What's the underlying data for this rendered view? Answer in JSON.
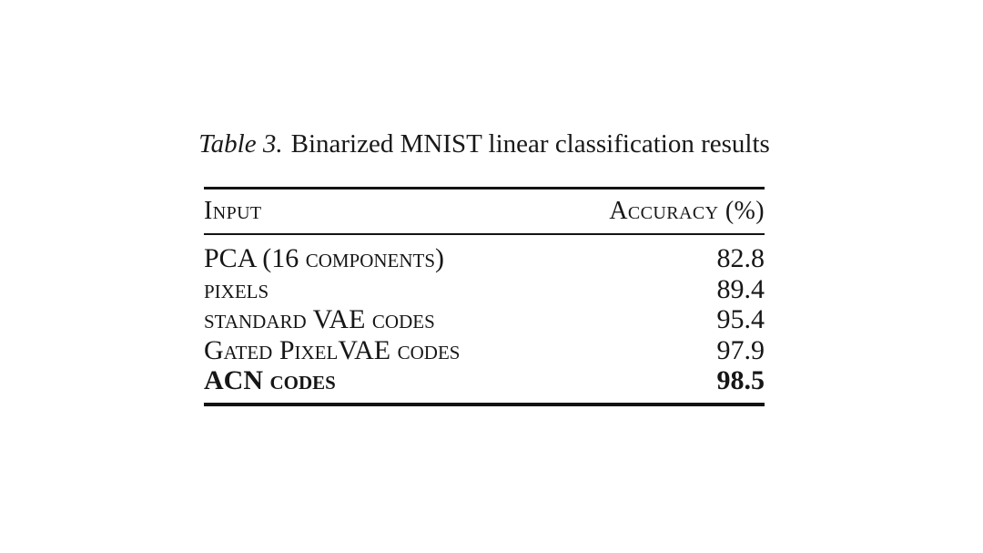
{
  "page": {
    "background": "#ffffff",
    "text_color": "#161616"
  },
  "caption": {
    "label": "Table 3.",
    "text": "Binarized MNIST linear classification results"
  },
  "table": {
    "columns": [
      "Input",
      "Accuracy (%)"
    ],
    "rows": [
      {
        "input": "PCA (16 components)",
        "accuracy": "82.8",
        "bold": false
      },
      {
        "input": "pixels",
        "accuracy": "89.4",
        "bold": false
      },
      {
        "input": "standard VAE codes",
        "accuracy": "95.4",
        "bold": false
      },
      {
        "input": "Gated PixelVAE codes",
        "accuracy": "97.9",
        "bold": false
      },
      {
        "input": "ACN codes",
        "accuracy": "98.5",
        "bold": true
      }
    ]
  },
  "chart_data": {
    "type": "table",
    "title": "Table 3. Binarized MNIST linear classification results",
    "columns": [
      "Input",
      "Accuracy (%)"
    ],
    "rows": [
      [
        "PCA (16 components)",
        82.8
      ],
      [
        "pixels",
        89.4
      ],
      [
        "standard VAE codes",
        95.4
      ],
      [
        "Gated PixelVAE codes",
        97.9
      ],
      [
        "ACN codes",
        98.5
      ]
    ],
    "emphasis": "ACN codes row rendered in bold",
    "layout": "small-caps text; thick top and bottom rules, thin rule under header; accuracy column right-aligned"
  }
}
